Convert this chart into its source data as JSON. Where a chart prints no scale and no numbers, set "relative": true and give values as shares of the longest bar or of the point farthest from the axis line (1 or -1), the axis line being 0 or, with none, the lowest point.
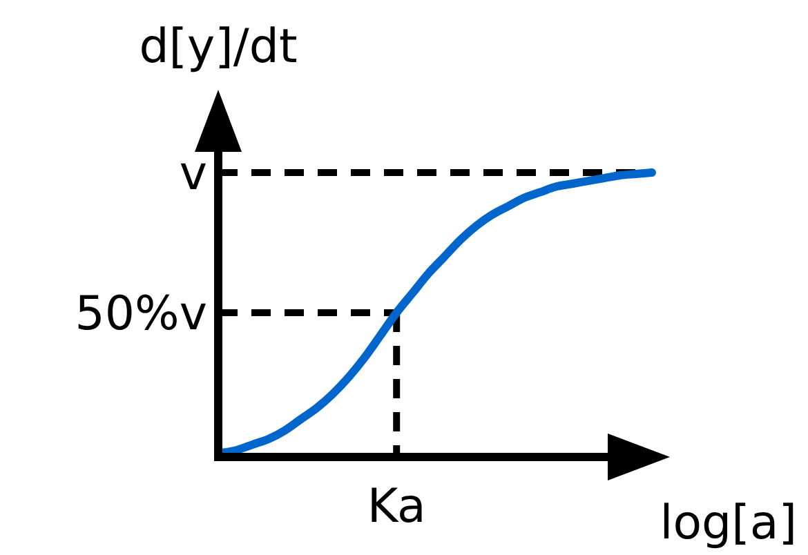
{
  "chart_data": {
    "type": "line",
    "xlabel": "log[a]",
    "ylabel": "d[y]/dt",
    "relative": true,
    "categories": [
      null,
      null,
      null,
      null,
      null,
      null,
      null,
      null,
      null,
      null,
      null,
      null,
      null,
      null,
      null,
      null,
      null,
      null,
      null,
      null,
      null,
      null,
      null,
      null,
      null,
      null,
      null,
      null
    ],
    "series": [
      {
        "color": "#0066cc",
        "values": [
          0,
          0.01,
          0.03,
          0.05,
          0.08,
          0.12,
          0.16,
          0.21,
          0.27,
          0.34,
          0.42,
          0.5,
          0.57,
          0.64,
          0.7,
          0.76,
          0.81,
          0.85,
          0.88,
          0.91,
          0.93,
          0.95,
          0.96,
          0.97,
          0.98,
          0.99,
          0.995,
          1
        ]
      }
    ],
    "ref_lines": [
      {
        "axis": "y",
        "value": 1,
        "label": "v",
        "line_style": "dashed",
        "color": "#000000"
      },
      {
        "axis": "y",
        "value": 0.5,
        "label": "50%v",
        "line_style": "dashed",
        "color": "#000000"
      }
    ],
    "annotations": [
      "Ka"
    ],
    "marker": "none",
    "line_style": "solid"
  }
}
